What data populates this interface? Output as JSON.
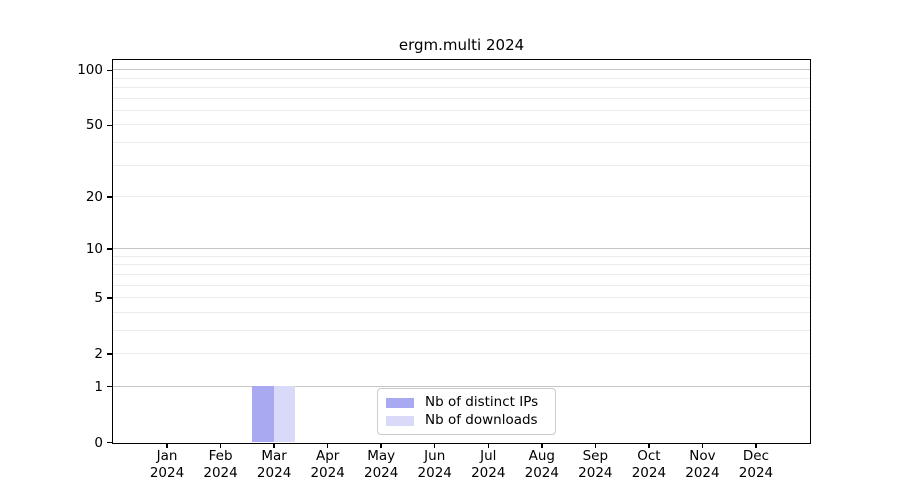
{
  "title": "ergm.multi 2024",
  "y_axis": {
    "tick_labels": [
      "100",
      "50",
      "20",
      "10",
      "5",
      "2",
      "1",
      "0"
    ],
    "tick_values": [
      100,
      50,
      20,
      10,
      5,
      2,
      1,
      0
    ],
    "decade_gridlines": [
      1,
      10,
      100
    ],
    "light_gridlines": [
      2,
      3,
      4,
      5,
      6,
      7,
      8,
      9,
      20,
      30,
      40,
      50,
      60,
      70,
      80,
      90
    ],
    "top_value": 113,
    "scale": "log10(1+v)"
  },
  "x_axis": {
    "months": [
      "Jan",
      "Feb",
      "Mar",
      "Apr",
      "May",
      "Jun",
      "Jul",
      "Aug",
      "Sep",
      "Oct",
      "Nov",
      "Dec"
    ],
    "year": "2024"
  },
  "legend": {
    "items": [
      {
        "label": "Nb of distinct IPs",
        "color": "#a9a9f1"
      },
      {
        "label": "Nb of downloads",
        "color": "#d9d9f8"
      }
    ]
  },
  "colors": {
    "grid_decade": "#c6c6c6",
    "grid_light": "#ebebeb",
    "axis": "#000000",
    "background": "#ffffff"
  },
  "chart_data": {
    "type": "bar",
    "title": "ergm.multi 2024",
    "categories": [
      "Jan 2024",
      "Feb 2024",
      "Mar 2024",
      "Apr 2024",
      "May 2024",
      "Jun 2024",
      "Jul 2024",
      "Aug 2024",
      "Sep 2024",
      "Oct 2024",
      "Nov 2024",
      "Dec 2024"
    ],
    "series": [
      {
        "name": "Nb of distinct IPs",
        "color": "#a9a9f1",
        "values": [
          0,
          0,
          1,
          0,
          0,
          0,
          0,
          0,
          0,
          0,
          0,
          0
        ]
      },
      {
        "name": "Nb of downloads",
        "color": "#d9d9f8",
        "values": [
          0,
          0,
          1,
          0,
          0,
          0,
          0,
          0,
          0,
          0,
          0,
          0
        ]
      }
    ],
    "xlabel": "",
    "ylabel": "",
    "y_scale": "log1p",
    "ylim": [
      0,
      113
    ],
    "y_ticks": [
      0,
      1,
      2,
      5,
      10,
      20,
      50,
      100
    ],
    "grid": true,
    "legend_position": "inside-bottom-center"
  }
}
